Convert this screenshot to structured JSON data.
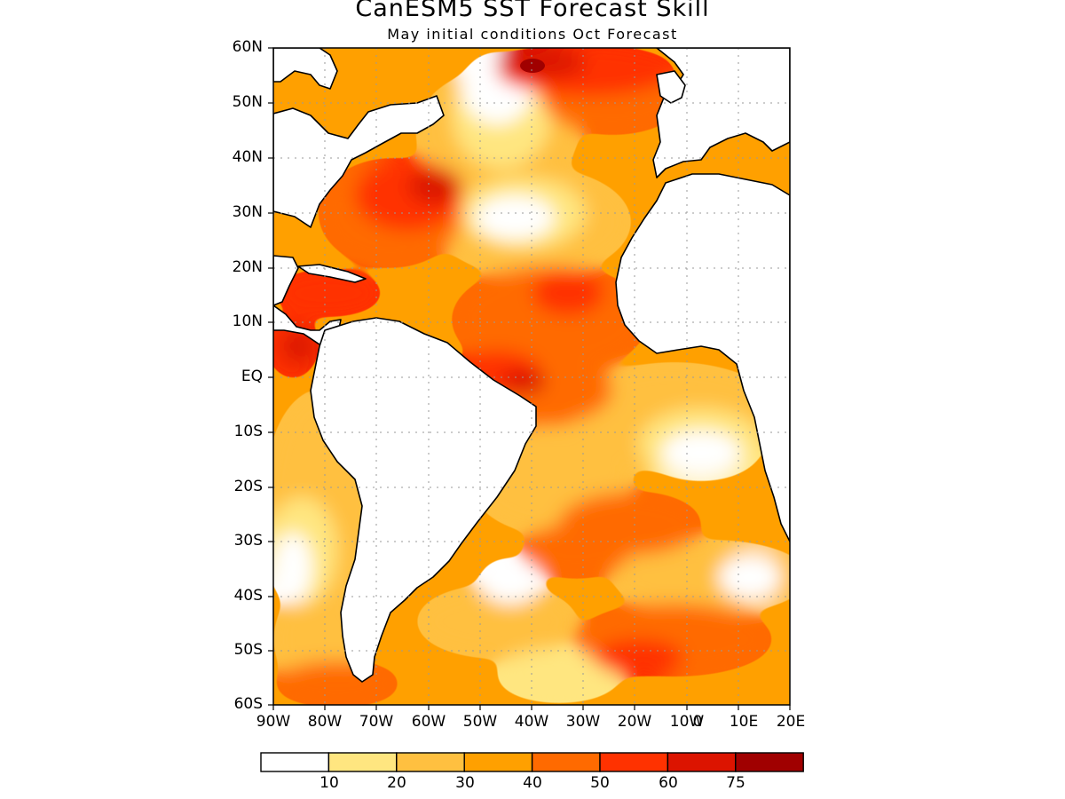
{
  "title": "CanESM5 SST Forecast Skill",
  "subtitle": "May initial conditions  Oct Forecast",
  "lat_labels": [
    "60N",
    "50N",
    "40N",
    "30N",
    "20N",
    "10N",
    "EQ",
    "10S",
    "20S",
    "30S",
    "40S",
    "50S",
    "60S"
  ],
  "lon_labels": [
    "90W",
    "80W",
    "70W",
    "60W",
    "50W",
    "40W",
    "30W",
    "20W",
    "10W",
    "0",
    "10E",
    "20E"
  ],
  "colorbar": {
    "labels": [
      "10",
      "20",
      "30",
      "40",
      "50",
      "60",
      "75"
    ],
    "colors": [
      "#ffffff",
      "#ffe680",
      "#ffc040",
      "#ffa000",
      "#ff6a00",
      "#ff3200",
      "#dc1400",
      "#a00000"
    ]
  },
  "colors": {
    "land": "#ffffff",
    "coast": "#000000",
    "grid": "#9a9a9a"
  }
}
